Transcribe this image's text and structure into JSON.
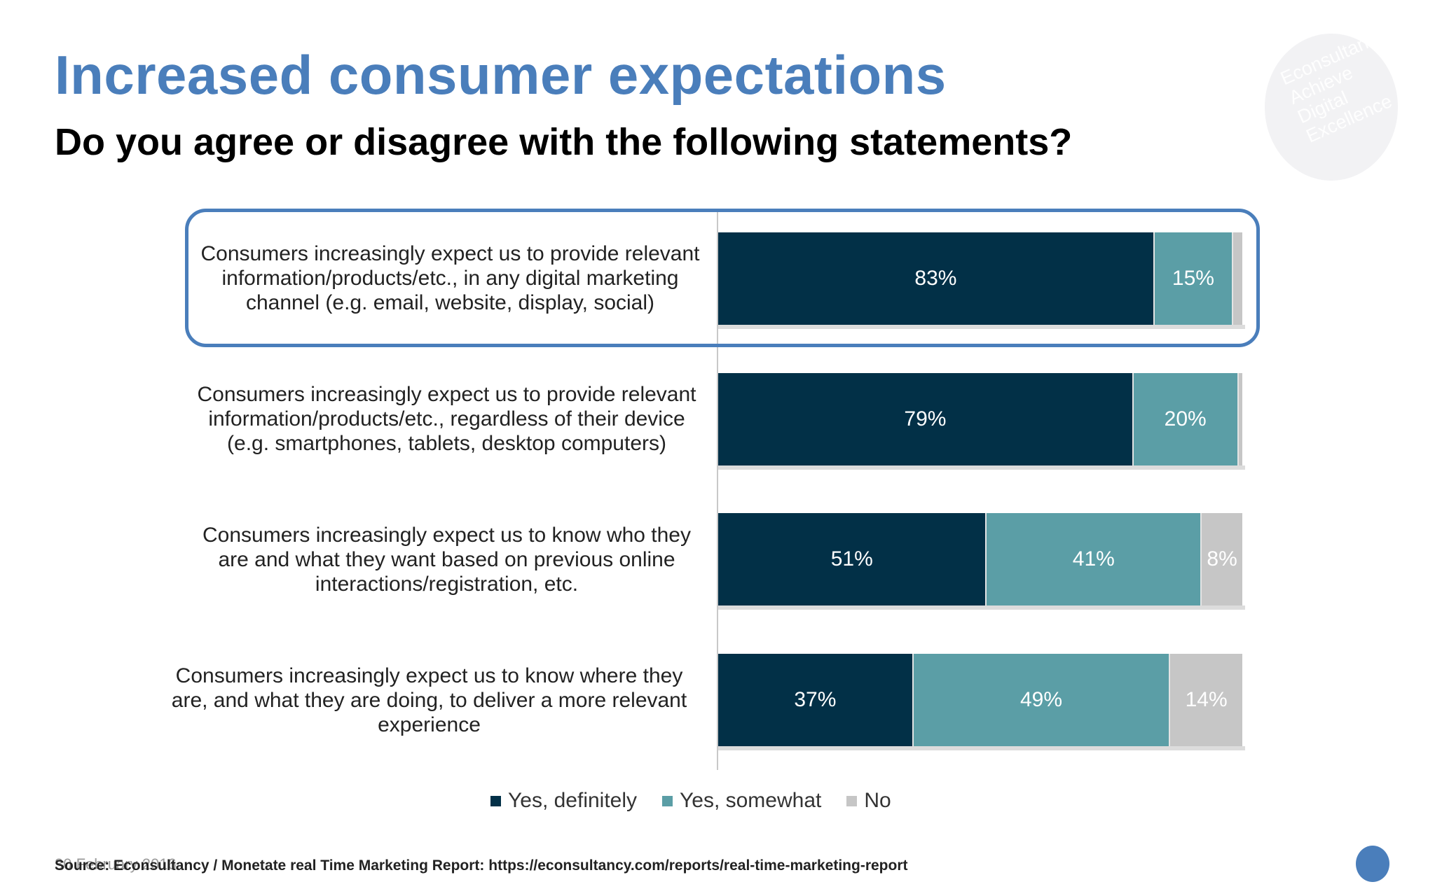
{
  "slide": {
    "title": "Increased consumer expectations",
    "subtitle": "Do you agree or disagree with the following statements?",
    "date": "30 February 2016",
    "source": "Source: Econsultancy / Monetate real Time Marketing Report: https://econsultancy.com/reports/real-time-marketing-report"
  },
  "logo": {
    "lines": [
      "Econsultancy",
      "Achieve",
      "Digital",
      "Excellence"
    ]
  },
  "colors": {
    "title": "#4a7ebb",
    "yes_definitely": "#023047",
    "yes_somewhat": "#5b9ea6",
    "no": "#c6c6c6",
    "highlight_border": "#4a7ebb"
  },
  "chart_data": {
    "type": "bar",
    "orientation": "horizontal",
    "stacked": true,
    "categories": [
      "Consumers increasingly expect us to provide relevant information/products/etc., in any digital marketing channel (e.g. email, website, display, social)",
      "Consumers increasingly expect us to provide relevant information/products/etc., regardless of their device (e.g. smartphones, tablets, desktop computers)",
      "Consumers increasingly expect us to know who they are and what they want based on previous online interactions/registration, etc.",
      "Consumers increasingly expect us to know where they are, and what they are doing, to deliver a more relevant experience"
    ],
    "series": [
      {
        "name": "Yes, definitely",
        "values": [
          83,
          79,
          51,
          37
        ],
        "labels": [
          "83%",
          "79%",
          "51%",
          "37%"
        ]
      },
      {
        "name": "Yes, somewhat",
        "values": [
          15,
          20,
          41,
          49
        ],
        "labels": [
          "15%",
          "20%",
          "41%",
          "49%"
        ]
      },
      {
        "name": "No",
        "values": [
          2,
          1,
          8,
          14
        ],
        "labels": [
          "",
          "",
          "8%",
          "14%"
        ]
      }
    ],
    "xlim": [
      0,
      100
    ],
    "legend": "bottom",
    "highlighted_category_index": 0
  }
}
